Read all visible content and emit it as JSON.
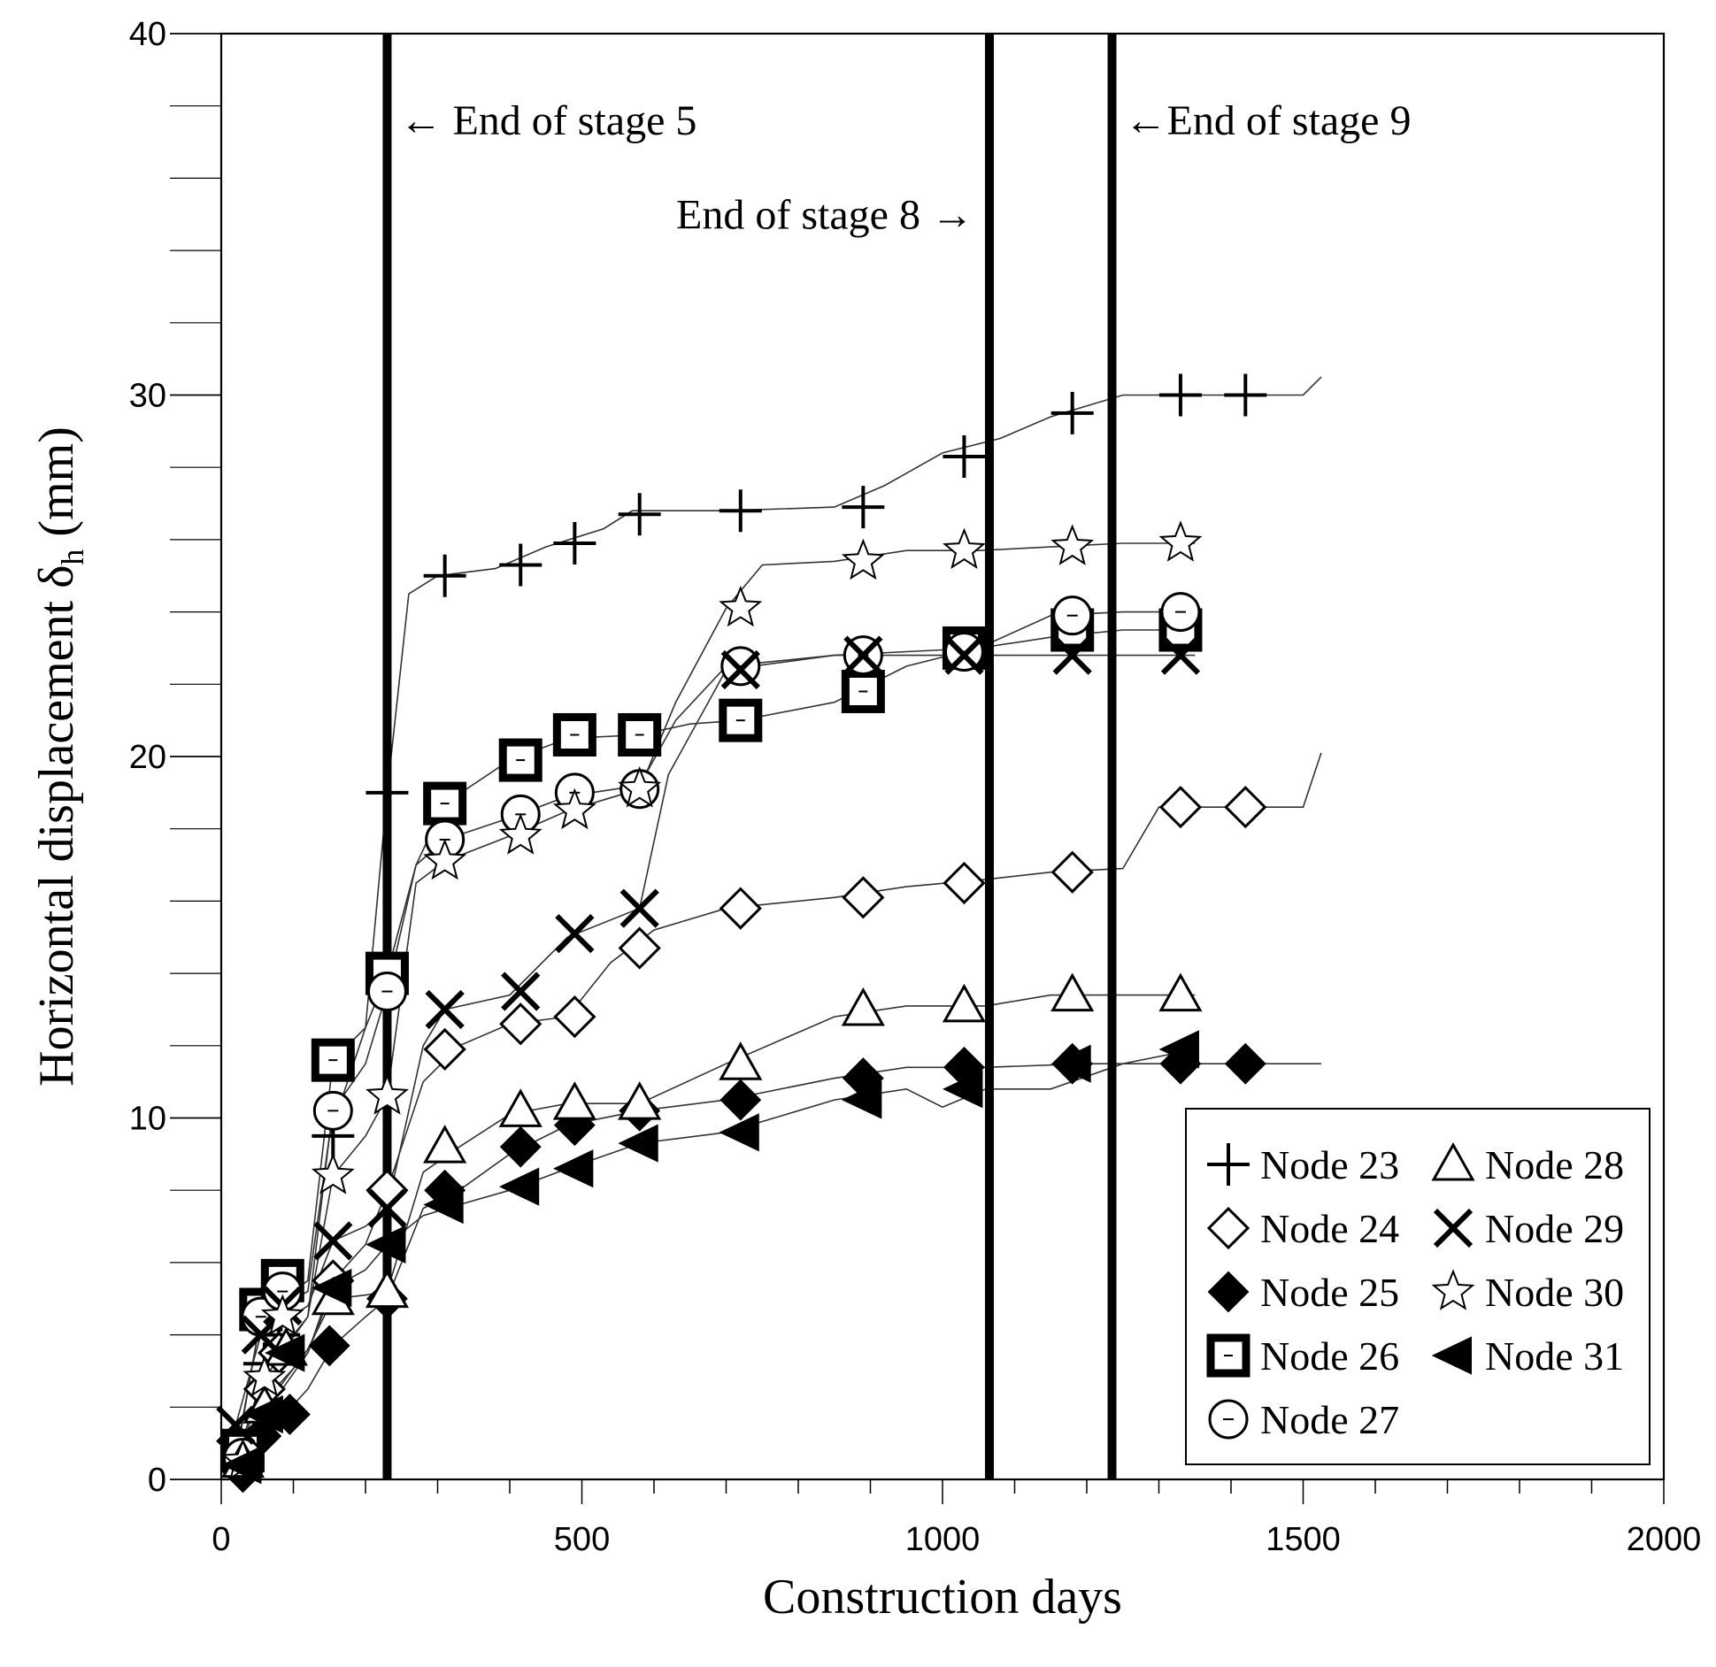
{
  "chart_data": {
    "type": "scatter",
    "title": "",
    "xlabel": "Construction days",
    "ylabel": "Horizontal displacement δ",
    "ylabel_sub": "h",
    "ylabel_unit": " (mm)",
    "xlim": [
      0,
      2000
    ],
    "ylim": [
      0,
      40
    ],
    "x_ticks": [
      0,
      500,
      1000,
      1500,
      2000
    ],
    "x_tick_labels": [
      "0",
      "500",
      "1000",
      "1500",
      "2000"
    ],
    "y_ticks": [
      0,
      10,
      20,
      30,
      40
    ],
    "y_tick_labels": [
      "0",
      "10",
      "20",
      "30",
      "40"
    ],
    "x_minor_step": 100,
    "y_minor_step": 2,
    "grid": false,
    "legend_position": "bottom-right",
    "stage_lines": [
      {
        "x": 230,
        "label": "← End of stage 5",
        "side": "right",
        "y": 37.6
      },
      {
        "x": 1065,
        "label": "End of stage 8 →",
        "side": "left",
        "y": 35.0
      },
      {
        "x": 1235,
        "label": "←End of stage 9",
        "side": "right",
        "y": 37.6
      }
    ],
    "series": [
      {
        "name": "Node 23",
        "marker": "plus",
        "x": [
          30,
          60,
          80,
          155,
          230,
          310,
          415,
          490,
          580,
          720,
          890,
          1030,
          1180,
          1330,
          1420
        ],
        "y": [
          0.8,
          3.2,
          4.0,
          9.5,
          19.0,
          25.0,
          25.3,
          25.9,
          26.7,
          26.8,
          26.9,
          28.3,
          29.5,
          30.0,
          30.0
        ],
        "line_x": [
          20,
          60,
          120,
          150,
          200,
          230,
          260,
          300,
          380,
          450,
          530,
          570,
          700,
          850,
          920,
          1000,
          1080,
          1150,
          1250,
          1350,
          1450,
          1500,
          1525
        ],
        "line_y": [
          0.5,
          3.0,
          4.5,
          9.5,
          12.5,
          19.0,
          24.5,
          25.0,
          25.2,
          25.8,
          26.3,
          26.8,
          26.8,
          26.9,
          27.5,
          28.4,
          28.8,
          29.4,
          30.0,
          30.0,
          30.0,
          30.0,
          30.5
        ]
      },
      {
        "name": "Node 24",
        "marker": "diamond-open",
        "x": [
          30,
          60,
          80,
          155,
          230,
          310,
          415,
          490,
          580,
          720,
          890,
          1030,
          1180,
          1330,
          1420
        ],
        "y": [
          0.5,
          2.5,
          3.5,
          5.5,
          8.0,
          11.9,
          12.6,
          12.8,
          14.7,
          15.8,
          16.1,
          16.5,
          16.8,
          18.6,
          18.6
        ],
        "line_x": [
          20,
          60,
          120,
          155,
          200,
          230,
          280,
          330,
          400,
          480,
          540,
          600,
          700,
          850,
          950,
          1060,
          1150,
          1250,
          1300,
          1400,
          1450,
          1500,
          1525
        ],
        "line_y": [
          0.4,
          2.2,
          3.5,
          5.5,
          6.5,
          8.0,
          11.0,
          12.0,
          12.6,
          12.8,
          14.3,
          15.2,
          15.8,
          16.1,
          16.4,
          16.6,
          16.8,
          16.9,
          18.6,
          18.6,
          18.6,
          18.6,
          20.1
        ]
      },
      {
        "name": "Node 25",
        "marker": "diamond-filled",
        "x": [
          30,
          55,
          95,
          150,
          230,
          310,
          415,
          490,
          580,
          720,
          890,
          1030,
          1180,
          1330,
          1420
        ],
        "y": [
          0.2,
          1.2,
          1.8,
          3.7,
          5.0,
          8.0,
          9.2,
          9.8,
          10.2,
          10.5,
          11.1,
          11.4,
          11.5,
          11.5,
          11.5
        ],
        "line_x": [
          20,
          60,
          120,
          155,
          200,
          230,
          280,
          330,
          400,
          480,
          580,
          700,
          850,
          950,
          1060,
          1200,
          1350,
          1525
        ],
        "line_y": [
          0.2,
          1.2,
          2.5,
          3.7,
          4.5,
          5.0,
          7.5,
          8.0,
          9.0,
          9.8,
          10.2,
          10.5,
          11.1,
          11.4,
          11.4,
          11.5,
          11.5,
          11.5
        ]
      },
      {
        "name": "Node 26",
        "marker": "square-open",
        "x": [
          30,
          55,
          85,
          155,
          230,
          310,
          415,
          490,
          580,
          720,
          890,
          1030,
          1180,
          1330
        ],
        "y": [
          0.8,
          4.7,
          5.5,
          11.6,
          14.0,
          18.7,
          19.9,
          20.6,
          20.6,
          21.0,
          21.8,
          23.0,
          23.5,
          23.5
        ],
        "line_x": [
          20,
          55,
          120,
          155,
          200,
          230,
          270,
          310,
          400,
          480,
          580,
          650,
          720,
          850,
          950,
          1050,
          1150,
          1250,
          1350
        ],
        "line_y": [
          0.6,
          4.5,
          5.5,
          11.6,
          12.5,
          14.0,
          17.0,
          18.7,
          19.9,
          20.5,
          20.6,
          20.9,
          21.0,
          21.5,
          22.5,
          23.0,
          23.3,
          23.5,
          23.5
        ]
      },
      {
        "name": "Node 27",
        "marker": "circle-open",
        "x": [
          30,
          55,
          85,
          155,
          230,
          310,
          415,
          490,
          580,
          720,
          890,
          1030,
          1180,
          1330
        ],
        "y": [
          0.6,
          4.5,
          5.2,
          10.2,
          13.5,
          17.7,
          18.4,
          19.0,
          19.1,
          22.5,
          22.8,
          22.9,
          23.9,
          24.0
        ],
        "line_x": [
          20,
          55,
          120,
          155,
          200,
          230,
          270,
          310,
          400,
          480,
          580,
          630,
          700,
          850,
          950,
          1050,
          1150,
          1250,
          1350
        ],
        "line_y": [
          0.5,
          4.5,
          5.2,
          10.2,
          11.5,
          13.5,
          17.0,
          17.7,
          18.3,
          18.9,
          19.2,
          21.0,
          22.5,
          22.8,
          22.9,
          23.0,
          23.9,
          24.0,
          24.0
        ]
      },
      {
        "name": "Node 28",
        "marker": "triangle-open",
        "x": [
          30,
          60,
          90,
          155,
          230,
          310,
          415,
          490,
          580,
          720,
          890,
          1030,
          1180,
          1330
        ],
        "y": [
          0.5,
          2.0,
          3.6,
          5.0,
          5.2,
          9.2,
          10.2,
          10.4,
          10.4,
          11.5,
          13.0,
          13.1,
          13.4,
          13.4
        ],
        "line_x": [
          20,
          60,
          120,
          155,
          200,
          230,
          280,
          330,
          400,
          480,
          580,
          700,
          850,
          950,
          1060,
          1150,
          1250,
          1350
        ],
        "line_y": [
          0.4,
          2.0,
          3.6,
          5.0,
          5.1,
          5.2,
          8.5,
          9.2,
          10.1,
          10.4,
          10.4,
          11.5,
          12.8,
          13.1,
          13.1,
          13.4,
          13.4,
          13.4
        ]
      },
      {
        "name": "Node 29",
        "marker": "cross",
        "x": [
          20,
          55,
          85,
          155,
          230,
          310,
          415,
          490,
          580,
          720,
          890,
          1030,
          1180,
          1330
        ],
        "y": [
          1.5,
          4.0,
          4.8,
          6.6,
          7.5,
          13.0,
          13.5,
          15.1,
          15.8,
          22.4,
          22.8,
          22.8,
          22.8,
          22.8
        ],
        "line_x": [
          20,
          55,
          120,
          155,
          200,
          230,
          280,
          310,
          400,
          480,
          580,
          620,
          700,
          850,
          950,
          1050,
          1150,
          1250,
          1350
        ],
        "line_y": [
          1.5,
          4.0,
          4.8,
          6.6,
          7.0,
          7.5,
          12.0,
          13.0,
          13.4,
          15.0,
          15.8,
          19.5,
          22.4,
          22.8,
          22.8,
          22.8,
          22.8,
          22.8,
          22.8
        ]
      },
      {
        "name": "Node 30",
        "marker": "star-open",
        "x": [
          30,
          60,
          85,
          155,
          230,
          310,
          415,
          490,
          580,
          720,
          890,
          1030,
          1180,
          1330
        ],
        "y": [
          0.5,
          2.8,
          4.5,
          8.4,
          10.6,
          17.1,
          17.8,
          18.5,
          19.1,
          24.1,
          25.4,
          25.7,
          25.8,
          25.9
        ],
        "line_x": [
          20,
          60,
          120,
          155,
          200,
          230,
          270,
          310,
          400,
          480,
          580,
          630,
          700,
          750,
          850,
          950,
          1050,
          1150,
          1250,
          1350
        ],
        "line_y": [
          0.4,
          2.8,
          4.5,
          8.4,
          9.5,
          10.6,
          16.5,
          17.1,
          17.8,
          18.5,
          19.1,
          21.5,
          24.1,
          25.3,
          25.4,
          25.7,
          25.7,
          25.8,
          25.9,
          25.9
        ]
      },
      {
        "name": "Node 31",
        "marker": "triangle-left-filled",
        "x": [
          30,
          60,
          90,
          155,
          230,
          310,
          415,
          490,
          580,
          720,
          890,
          1030,
          1180,
          1330
        ],
        "y": [
          0.4,
          1.8,
          3.5,
          5.3,
          6.5,
          7.6,
          8.1,
          8.6,
          9.3,
          9.6,
          10.5,
          10.8,
          11.5,
          11.9
        ],
        "line_x": [
          20,
          60,
          120,
          155,
          200,
          230,
          280,
          330,
          400,
          480,
          580,
          700,
          850,
          950,
          1000,
          1060,
          1150,
          1250,
          1350
        ],
        "line_y": [
          0.3,
          1.8,
          3.5,
          5.3,
          5.8,
          6.5,
          7.3,
          7.6,
          8.0,
          8.6,
          9.3,
          9.6,
          10.5,
          10.8,
          10.3,
          10.8,
          10.8,
          11.5,
          11.9
        ]
      }
    ]
  }
}
